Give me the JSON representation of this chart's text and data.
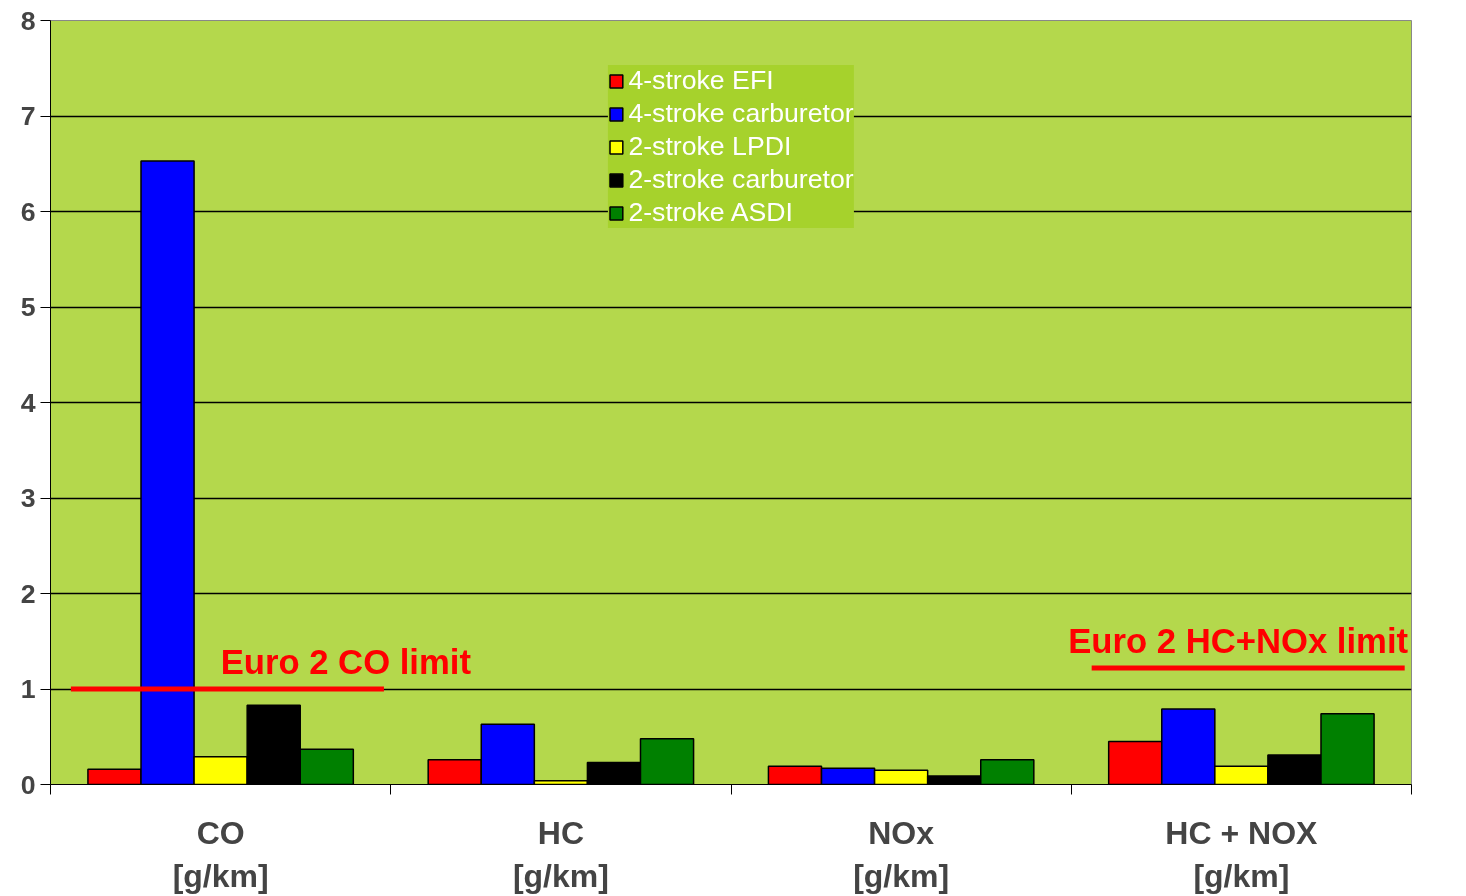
{
  "chart_data": {
    "type": "bar",
    "categories": [
      "CO\n[g/km]",
      "HC\n[g/km]",
      "NOx\n[g/km]",
      "HC + NOX\n[g/km]"
    ],
    "series": [
      {
        "name": "4-stroke EFI",
        "color": "#ff0000",
        "values": [
          0.16,
          0.26,
          0.19,
          0.45
        ]
      },
      {
        "name": "4-stroke carburetor",
        "color": "#0000ff",
        "values": [
          6.53,
          0.63,
          0.17,
          0.79
        ]
      },
      {
        "name": "2-stroke LPDI",
        "color": "#ffff00",
        "values": [
          0.29,
          0.04,
          0.15,
          0.19
        ]
      },
      {
        "name": "2-stroke carburetor",
        "color": "#000000",
        "values": [
          0.83,
          0.23,
          0.09,
          0.31
        ]
      },
      {
        "name": "2-stroke ASDI",
        "color": "#008000",
        "values": [
          0.37,
          0.48,
          0.26,
          0.74
        ]
      }
    ],
    "ylim": [
      0,
      8
    ],
    "yticks": [
      0,
      1,
      2,
      3,
      4,
      5,
      6,
      7,
      8
    ],
    "grid": "y",
    "legend": "top",
    "ref_lines": [
      {
        "axis": "y",
        "value": 1,
        "label": "Euro 2 CO limit",
        "color": "#ff0000"
      },
      {
        "axis": "y",
        "value": 1.22,
        "label": "Euro 2 HC+NOx limit",
        "color": "#ff0000"
      }
    ]
  }
}
